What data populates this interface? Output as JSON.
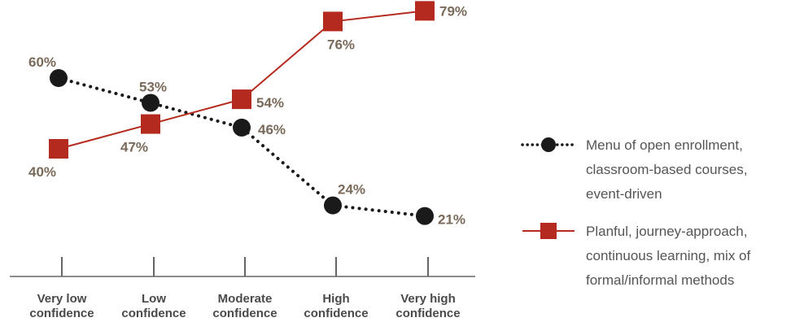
{
  "chart_data": {
    "type": "line",
    "categories": [
      [
        "Very low",
        "confidence"
      ],
      [
        "Low",
        "confidence"
      ],
      [
        "Moderate",
        "confidence"
      ],
      [
        "High",
        "confidence"
      ],
      [
        "Very high",
        "confidence"
      ]
    ],
    "ylim": [
      15,
      85
    ],
    "grid": false,
    "legend_position": "right",
    "series": [
      {
        "name": [
          "Menu of open enrollment,",
          "classroom-based courses,",
          "event-driven"
        ],
        "values": [
          60,
          53,
          46,
          24,
          21
        ],
        "labels": [
          "60%",
          "53%",
          "46%",
          "24%",
          "21%"
        ],
        "marker": "circle",
        "line_style": "dotted",
        "color": "#1a1a1a"
      },
      {
        "name": [
          "Planful, journey-approach,",
          "continuous learning, mix of",
          "formal/informal methods"
        ],
        "values": [
          40,
          47,
          54,
          76,
          79
        ],
        "labels": [
          "40%",
          "47%",
          "54%",
          "76%",
          "79%"
        ],
        "marker": "square",
        "line_style": "solid",
        "color": "#b52a1e"
      }
    ],
    "colors": {
      "axis": "#666666",
      "data_label": "#7a6a5a",
      "tick_label": "#4a4a4a",
      "legend_text": "#555555"
    }
  }
}
